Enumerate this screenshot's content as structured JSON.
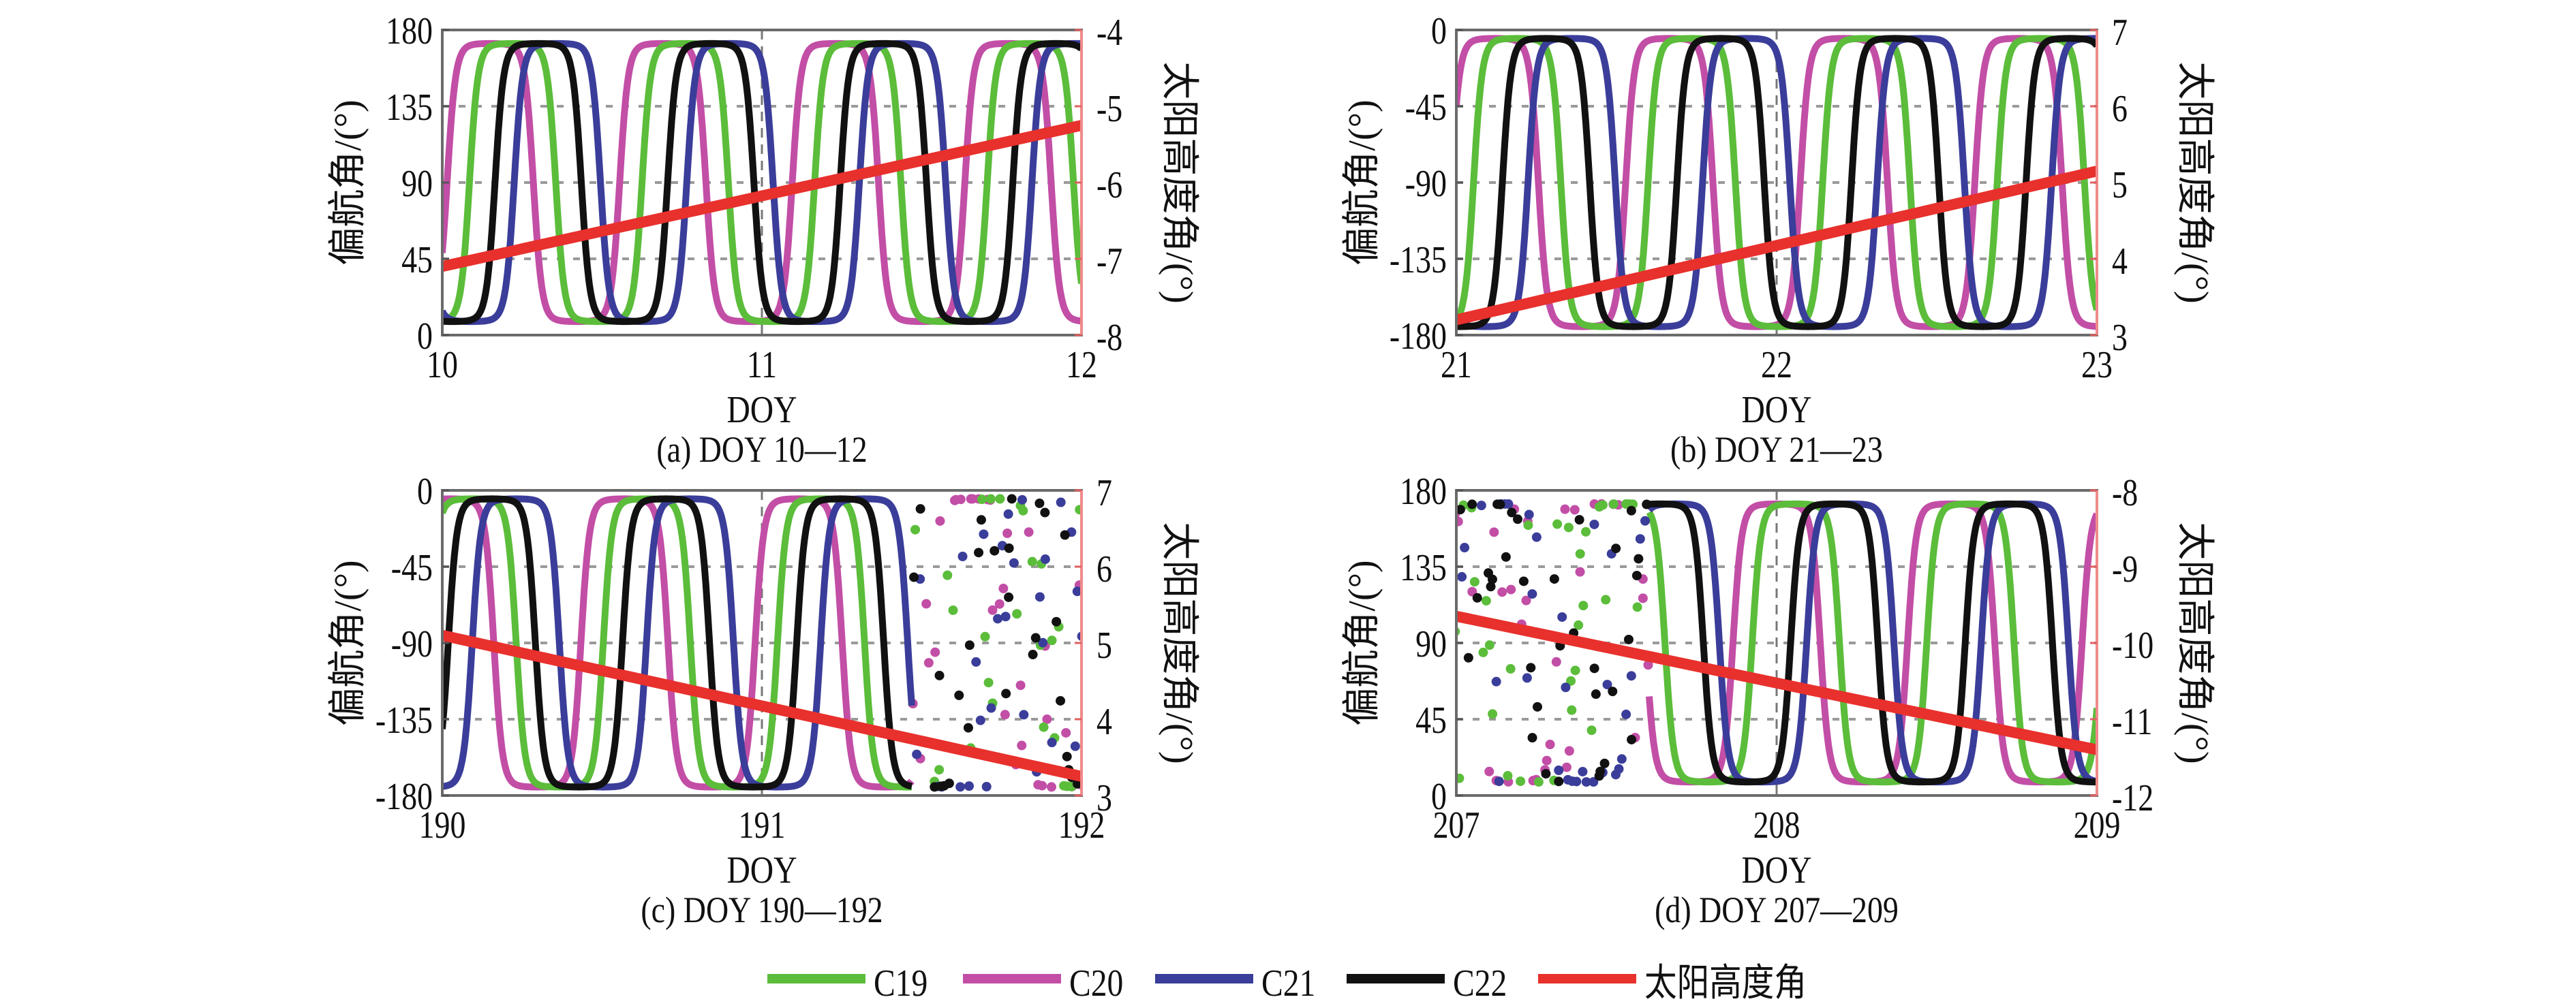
{
  "chart_data": [
    {
      "type": "line",
      "caption": "(a) DOY 10—12",
      "xlabel": "DOY",
      "ylabel_left": "偏航角/(°)",
      "ylabel_right": "太阳高度角/(°)",
      "xlim": [
        10,
        12
      ],
      "xticks": [
        "10",
        "11",
        "12"
      ],
      "ylim_left": [
        0,
        180
      ],
      "yticks_left": [
        "180",
        "135",
        "90",
        "45",
        "0"
      ],
      "ylim_right": [
        -8,
        -4
      ],
      "yticks_right": [
        "-4",
        "-5",
        "-6",
        "-7",
        "-8"
      ],
      "yaw_range": [
        8,
        172
      ],
      "period_days": 0.54,
      "series_peak_doy": {
        "C19": 10.22,
        "C20": 10.15,
        "C21": 10.36,
        "C22": 10.3
      },
      "sun_elevation": {
        "x": [
          10,
          12
        ],
        "y": [
          -7.1,
          -5.25
        ]
      },
      "irregular_region": null
    },
    {
      "type": "line",
      "caption": "(b) DOY 21—23",
      "xlabel": "DOY",
      "ylabel_left": "偏航角/(°)",
      "ylabel_right": "太阳高度角/(°)",
      "xlim": [
        21,
        23
      ],
      "xticks": [
        "21",
        "22",
        "23"
      ],
      "ylim_left": [
        -180,
        0
      ],
      "yticks_left": [
        "0",
        "-45",
        "-90",
        "-135",
        "-180"
      ],
      "ylim_right": [
        3,
        7
      ],
      "yticks_right": [
        "7",
        "6",
        "5",
        "4",
        "3"
      ],
      "yaw_range": [
        -175,
        -5
      ],
      "period_days": 0.545,
      "series_peak_doy": {
        "C19": 21.19,
        "C20": 21.12,
        "C21": 21.36,
        "C22": 21.28
      },
      "sun_elevation": {
        "x": [
          21,
          23
        ],
        "y": [
          3.2,
          5.15
        ]
      },
      "irregular_region": null
    },
    {
      "type": "line",
      "caption": "(c) DOY 190—192",
      "xlabel": "DOY",
      "ylabel_left": "偏航角/(°)",
      "ylabel_right": "太阳高度角/(°)",
      "xlim": [
        190,
        192
      ],
      "xticks": [
        "190",
        "191",
        "192"
      ],
      "ylim_left": [
        -180,
        0
      ],
      "yticks_left": [
        "0",
        "-45",
        "-90",
        "-135",
        "-180"
      ],
      "ylim_right": [
        3,
        7
      ],
      "yticks_right": [
        "7",
        "6",
        "5",
        "4",
        "3"
      ],
      "yaw_range": [
        -175,
        -5
      ],
      "period_days": 0.545,
      "series_peak_doy": {
        "C19": 190.095,
        "C20": 190.025,
        "C21": 190.23,
        "C22": 190.155
      },
      "sun_elevation": {
        "x": [
          190,
          192
        ],
        "y": [
          5.1,
          3.25
        ]
      },
      "irregular_region": [
        191.47,
        192
      ]
    },
    {
      "type": "line",
      "caption": "(d) DOY 207—209",
      "xlabel": "DOY",
      "ylabel_left": "偏航角/(°)",
      "ylabel_right": "太阳高度角/(°)",
      "xlim": [
        207,
        209
      ],
      "xticks": [
        "207",
        "208",
        "209"
      ],
      "ylim_left": [
        0,
        180
      ],
      "yticks_left": [
        "180",
        "135",
        "90",
        "45",
        "0"
      ],
      "ylim_right": [
        -12,
        -8
      ],
      "yticks_right": [
        "-8",
        "-9",
        "-10",
        "-11",
        "-12"
      ],
      "yaw_range": [
        8,
        172
      ],
      "period_days": 0.545,
      "series_peak_doy": {
        "C19": 208.06,
        "C20": 208.0,
        "C21": 208.23,
        "C22": 208.18
      },
      "sun_elevation": {
        "x": [
          207,
          209
        ],
        "y": [
          -9.65,
          -11.4
        ]
      },
      "irregular_region": [
        207,
        207.6
      ]
    }
  ],
  "legend": [
    {
      "label": "C19",
      "color": "#5bbd3a"
    },
    {
      "label": "C20",
      "color": "#c24ea6"
    },
    {
      "label": "C21",
      "color": "#3a3d99"
    },
    {
      "label": "C22",
      "color": "#111111"
    },
    {
      "label": "太阳高度角",
      "color": "#e8302c"
    }
  ]
}
